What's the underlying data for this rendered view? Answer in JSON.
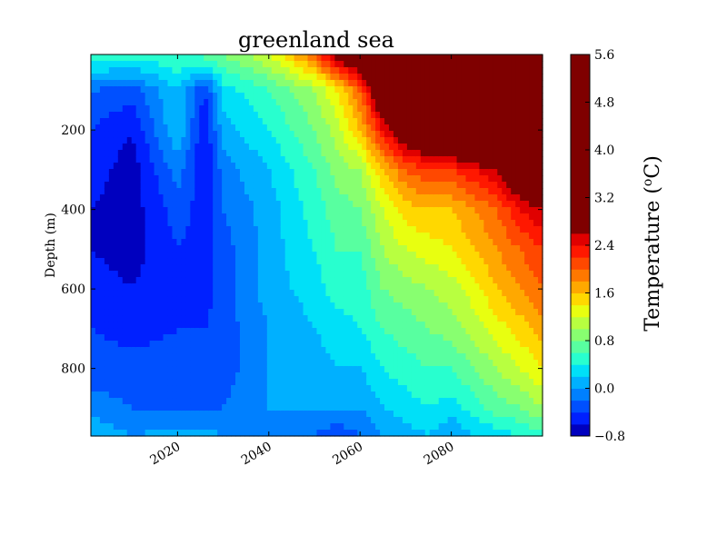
{
  "chart_data": {
    "type": "heatmap",
    "title": "greenland sea",
    "xlabel": "",
    "ylabel": "Depth (m)",
    "xlim": [
      2001,
      2100
    ],
    "ylim": [
      970,
      10
    ],
    "x_ticks": [
      2020,
      2040,
      2060,
      2080
    ],
    "x_tick_labels": [
      "2020",
      "2040",
      "2060",
      "2080"
    ],
    "y_ticks": [
      200,
      400,
      600,
      800
    ],
    "y_tick_labels": [
      "200",
      "400",
      "600",
      "800"
    ],
    "colorbar": {
      "label": "Temperature (°C)",
      "label_parts": {
        "prefix": "Temperature (",
        "sup": "o",
        "suffix": "C)"
      },
      "min": -0.8,
      "max": 5.6,
      "ticks": [
        -0.8,
        0.0,
        0.8,
        1.6,
        2.4,
        3.2,
        4.0,
        4.8,
        5.6
      ],
      "tick_labels": [
        "−0.8",
        "0.0",
        "0.8",
        "1.6",
        "2.4",
        "3.2",
        "4.0",
        "4.8",
        "5.6"
      ],
      "levels": [
        -0.8,
        -0.6,
        -0.4,
        -0.2,
        0.0,
        0.2,
        0.4,
        0.6,
        0.8,
        1.0,
        1.2,
        1.4,
        1.6,
        1.8,
        2.0,
        2.2,
        2.4,
        2.6,
        5.6
      ],
      "colors": [
        "#0000bf",
        "#0020ff",
        "#0050ff",
        "#0080ff",
        "#00b0ff",
        "#00e0f8",
        "#28ffcf",
        "#58ffa0",
        "#88ff70",
        "#b8ff40",
        "#e8ff10",
        "#ffd800",
        "#ffa800",
        "#ff7800",
        "#ff4800",
        "#ff1800",
        "#e00000",
        "#7f0000"
      ]
    },
    "depths": [
      10,
      100,
      200,
      300,
      400,
      500,
      600,
      700,
      800,
      900,
      970
    ],
    "years": [
      2001,
      2010,
      2020,
      2026,
      2030,
      2040,
      2050,
      2055,
      2060,
      2065,
      2070,
      2075,
      2080,
      2085,
      2090,
      2095,
      2100
    ],
    "values": [
      [
        0.6,
        0.5,
        0.6,
        0.7,
        0.8,
        1.2,
        2.0,
        2.8,
        3.2,
        4.6,
        5.2,
        5.4,
        5.5,
        5.5,
        5.6,
        5.6,
        5.6
      ],
      [
        -0.2,
        -0.3,
        0.2,
        -0.4,
        0.3,
        0.6,
        1.0,
        1.4,
        2.0,
        3.2,
        3.8,
        4.2,
        4.5,
        4.8,
        5.0,
        5.1,
        5.2
      ],
      [
        -0.4,
        -0.6,
        0.2,
        -0.6,
        0.1,
        0.4,
        0.8,
        1.1,
        1.6,
        2.4,
        3.0,
        3.4,
        3.6,
        3.8,
        4.2,
        4.5,
        4.6
      ],
      [
        -0.5,
        -0.7,
        -0.1,
        -0.6,
        -0.1,
        0.2,
        0.6,
        0.9,
        1.0,
        1.6,
        2.0,
        2.2,
        2.2,
        2.4,
        2.6,
        3.2,
        3.6
      ],
      [
        -0.6,
        -0.7,
        -0.3,
        -0.5,
        -0.2,
        0.1,
        0.5,
        0.7,
        0.8,
        1.2,
        1.5,
        1.6,
        1.6,
        1.8,
        2.0,
        2.4,
        2.6
      ],
      [
        -0.6,
        -0.7,
        -0.4,
        -0.5,
        -0.3,
        0.1,
        0.4,
        0.6,
        0.6,
        1.0,
        1.2,
        1.3,
        1.4,
        1.6,
        1.8,
        2.0,
        2.2
      ],
      [
        -0.5,
        -0.6,
        -0.4,
        -0.5,
        -0.3,
        0.1,
        0.3,
        0.5,
        0.5,
        0.8,
        0.9,
        1.0,
        1.1,
        1.3,
        1.6,
        1.8,
        2.0
      ],
      [
        -0.4,
        -0.5,
        -0.4,
        -0.4,
        -0.3,
        0.0,
        0.2,
        0.3,
        0.4,
        0.6,
        0.7,
        0.8,
        0.9,
        1.1,
        1.3,
        1.5,
        1.7
      ],
      [
        -0.3,
        -0.3,
        -0.3,
        -0.3,
        -0.3,
        0.0,
        0.1,
        0.2,
        0.2,
        0.4,
        0.5,
        0.6,
        0.6,
        0.8,
        1.0,
        1.2,
        1.4
      ],
      [
        -0.1,
        -0.2,
        -0.2,
        -0.2,
        -0.2,
        0.0,
        0.0,
        0.1,
        0.0,
        0.2,
        0.3,
        0.4,
        0.3,
        0.5,
        0.7,
        0.8,
        1.0
      ],
      [
        0.2,
        0.0,
        0.1,
        0.1,
        0.0,
        0.0,
        -0.2,
        -0.4,
        -0.2,
        0.0,
        0.1,
        0.2,
        0.0,
        0.2,
        0.3,
        0.4,
        0.5
      ]
    ]
  }
}
